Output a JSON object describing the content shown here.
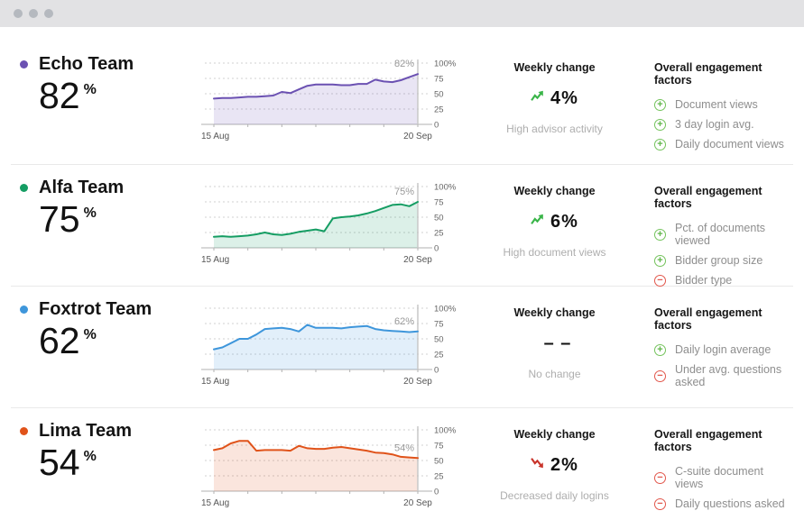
{
  "colors": {
    "titlebar_bg": "#e2e2e4",
    "window_dot": "#b5b9bf",
    "grid": "#d0d0d0",
    "axis": "#b2b2b2",
    "end_line": "#c8c8c8",
    "chart_label": "#999999",
    "axis_text": "#555555",
    "tick_text": "#666666",
    "up_arrow": "#3ab549",
    "down_arrow": "#c9342b",
    "plus": "#74c35c",
    "minus": "#e2574c",
    "divider": "#e9e9e9"
  },
  "rows": [
    {
      "team": "Echo Team",
      "value": "82",
      "unit": "%",
      "color": "#6b51b2",
      "chart": {
        "type": "area",
        "x_start": "15 Aug",
        "x_end": "20 Sep",
        "y_ticks": [
          "100%",
          "75",
          "50",
          "25",
          "0"
        ],
        "ylim": [
          0,
          100
        ],
        "end_label": "82%",
        "series": [
          42,
          43,
          43,
          44,
          45,
          45,
          46,
          47,
          53,
          51,
          57,
          63,
          65,
          65,
          65,
          64,
          64,
          66,
          66,
          73,
          70,
          69,
          72,
          77,
          82
        ]
      },
      "weekly": {
        "header": "Weekly change",
        "trend": "up",
        "value": "4%",
        "note": "High advisor activity"
      },
      "factors": {
        "header": "Overall engagement factors",
        "items": [
          {
            "sign": "plus",
            "label": "Document views"
          },
          {
            "sign": "plus",
            "label": "3 day login avg."
          },
          {
            "sign": "plus",
            "label": "Daily document views"
          }
        ]
      }
    },
    {
      "team": "Alfa Team",
      "value": "75",
      "unit": "%",
      "color": "#159d63",
      "chart": {
        "type": "area",
        "x_start": "15 Aug",
        "x_end": "20 Sep",
        "y_ticks": [
          "100%",
          "75",
          "50",
          "25",
          "0"
        ],
        "ylim": [
          0,
          100
        ],
        "end_label": "75%",
        "series": [
          18,
          19,
          18,
          19,
          20,
          22,
          25,
          22,
          21,
          23,
          26,
          28,
          30,
          27,
          48,
          50,
          51,
          53,
          56,
          60,
          65,
          70,
          71,
          68,
          75
        ]
      },
      "weekly": {
        "header": "Weekly change",
        "trend": "up",
        "value": "6%",
        "note": "High document views"
      },
      "factors": {
        "header": "Overall engagement factors",
        "items": [
          {
            "sign": "plus",
            "label": "Pct. of documents viewed"
          },
          {
            "sign": "plus",
            "label": "Bidder group size"
          },
          {
            "sign": "minus",
            "label": "Bidder type"
          }
        ]
      }
    },
    {
      "team": "Foxtrot Team",
      "value": "62",
      "unit": "%",
      "color": "#3e96db",
      "chart": {
        "type": "area",
        "x_start": "15 Aug",
        "x_end": "20 Sep",
        "y_ticks": [
          "100%",
          "75",
          "50",
          "25",
          "0"
        ],
        "ylim": [
          0,
          100
        ],
        "end_label": "62%",
        "series": [
          33,
          36,
          43,
          50,
          50,
          57,
          66,
          67,
          68,
          66,
          62,
          73,
          68,
          68,
          68,
          67,
          69,
          70,
          71,
          66,
          64,
          63,
          62,
          61,
          62
        ]
      },
      "weekly": {
        "header": "Weekly change",
        "trend": "none",
        "value": "– –",
        "note": "No change"
      },
      "factors": {
        "header": "Overall engagement factors",
        "items": [
          {
            "sign": "plus",
            "label": "Daily login average"
          },
          {
            "sign": "minus",
            "label": "Under avg. questions asked"
          }
        ]
      }
    },
    {
      "team": "Lima Team",
      "value": "54",
      "unit": "%",
      "color": "#e0531a",
      "chart": {
        "type": "area",
        "x_start": "15 Aug",
        "x_end": "20 Sep",
        "y_ticks": [
          "100%",
          "75",
          "50",
          "25",
          "0"
        ],
        "ylim": [
          0,
          100
        ],
        "end_label": "54%",
        "series": [
          67,
          70,
          78,
          82,
          82,
          66,
          67,
          67,
          67,
          66,
          74,
          70,
          69,
          69,
          71,
          72,
          70,
          68,
          66,
          63,
          62,
          60,
          56,
          55,
          54
        ]
      },
      "weekly": {
        "header": "Weekly change",
        "trend": "down",
        "value": "2%",
        "note": "Decreased daily logins"
      },
      "factors": {
        "header": "Overall engagement factors",
        "items": [
          {
            "sign": "minus",
            "label": "C-suite document views"
          },
          {
            "sign": "minus",
            "label": "Daily questions asked"
          }
        ]
      }
    }
  ]
}
